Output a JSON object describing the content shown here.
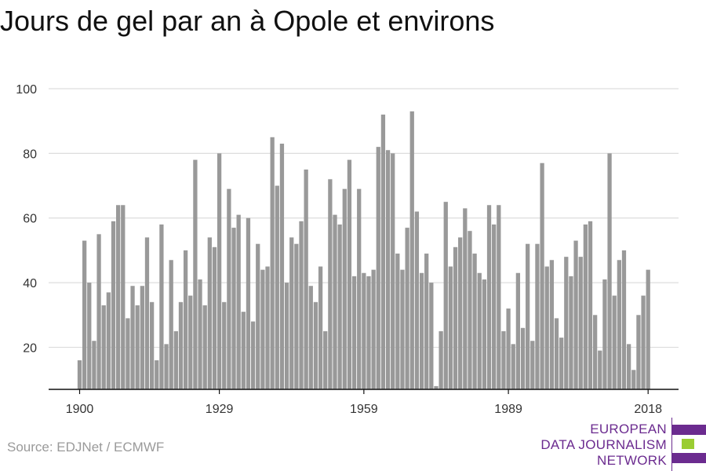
{
  "title": "Jours de gel par an à Opole et environs",
  "source": "Source: EDJNet / ECMWF",
  "logo": {
    "lines": [
      "EUROPEAN",
      "DATA JOURNALISM",
      "NETWORK"
    ],
    "colors": {
      "purple": "#6b2b8f",
      "green": "#9acd32"
    }
  },
  "colors": {
    "bar": "#999999",
    "grid": "#dddddd",
    "axis": "#111111",
    "text": "#333333"
  },
  "chart_data": {
    "type": "bar",
    "title": "Jours de gel par an à Opole et environs",
    "xlabel": "",
    "ylabel": "",
    "ylim": [
      7,
      100
    ],
    "yticks": [
      20,
      40,
      60,
      80,
      100
    ],
    "xticks": [
      1900,
      1929,
      1959,
      1989,
      2018
    ],
    "grid": true,
    "x_start": 1900,
    "x_end": 2018,
    "values": [
      16,
      53,
      40,
      22,
      55,
      33,
      37,
      59,
      64,
      64,
      29,
      39,
      33,
      39,
      54,
      34,
      16,
      58,
      21,
      47,
      25,
      34,
      50,
      36,
      78,
      41,
      33,
      54,
      51,
      80,
      34,
      69,
      57,
      61,
      31,
      60,
      28,
      52,
      44,
      45,
      85,
      70,
      83,
      40,
      54,
      52,
      59,
      75,
      39,
      34,
      45,
      25,
      72,
      61,
      58,
      69,
      78,
      42,
      69,
      43,
      42,
      44,
      82,
      92,
      81,
      80,
      49,
      44,
      57,
      93,
      62,
      43,
      49,
      40,
      8,
      25,
      65,
      45,
      51,
      54,
      63,
      56,
      49,
      43,
      41,
      64,
      58,
      64,
      25,
      32,
      21,
      43,
      26,
      52,
      22,
      52,
      77,
      45,
      47,
      29,
      23,
      48,
      42,
      53,
      48,
      58,
      59,
      30,
      19,
      41,
      80,
      36,
      47,
      50,
      21,
      13,
      30,
      36,
      44
    ]
  }
}
